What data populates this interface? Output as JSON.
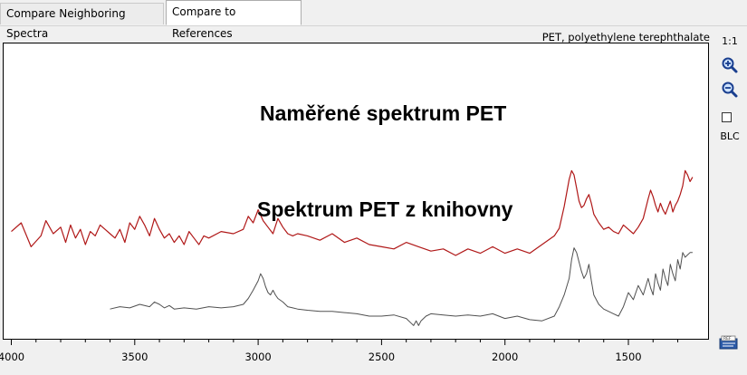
{
  "tabs": [
    {
      "label": "Compare Neighboring Spectra",
      "active": false
    },
    {
      "label": "Compare to References",
      "active": true
    }
  ],
  "plot": {
    "reference_name": "PET, polyethylene terephthalate",
    "caption_measured": "Naměřené spektrum PET",
    "caption_library": "Spektrum PET z knihovny",
    "colors": {
      "measured": "#b01818",
      "library": "#505050"
    }
  },
  "toolbar": {
    "scale_label": "1:1",
    "zoom_in_icon": "zoom-in-icon",
    "zoom_out_icon": "zoom-out-icon",
    "blc_checked": false,
    "blc_label": "BLC",
    "ref_icon": "ref-library-icon"
  },
  "chart_data": {
    "type": "line",
    "x_axis": {
      "reversed": true,
      "ticks": [
        4000,
        3500,
        3000,
        2500,
        2000,
        1500
      ],
      "range": [
        4020,
        1200
      ]
    },
    "series": [
      {
        "key": "measured",
        "x": [
          4000,
          3960,
          3920,
          3880,
          3860,
          3830,
          3800,
          3780,
          3760,
          3740,
          3720,
          3700,
          3680,
          3660,
          3640,
          3600,
          3580,
          3560,
          3540,
          3520,
          3500,
          3480,
          3460,
          3440,
          3420,
          3400,
          3380,
          3360,
          3340,
          3320,
          3300,
          3280,
          3260,
          3240,
          3220,
          3200,
          3150,
          3100,
          3060,
          3040,
          3020,
          3000,
          2980,
          2960,
          2940,
          2920,
          2900,
          2880,
          2860,
          2840,
          2800,
          2750,
          2700,
          2650,
          2600,
          2550,
          2500,
          2450,
          2400,
          2350,
          2300,
          2250,
          2200,
          2150,
          2100,
          2050,
          2000,
          1950,
          1900,
          1850,
          1800,
          1780,
          1760,
          1740,
          1730,
          1720,
          1710,
          1700,
          1690,
          1680,
          1670,
          1660,
          1650,
          1640,
          1620,
          1600,
          1580,
          1560,
          1540,
          1520,
          1500,
          1480,
          1460,
          1440,
          1420,
          1410,
          1400,
          1390,
          1380,
          1370,
          1360,
          1350,
          1340,
          1330,
          1320,
          1310,
          1300,
          1290,
          1280,
          1270,
          1260,
          1250,
          1240
        ],
        "y": [
          0.32,
          0.4,
          0.18,
          0.28,
          0.42,
          0.3,
          0.36,
          0.22,
          0.38,
          0.26,
          0.34,
          0.2,
          0.32,
          0.28,
          0.38,
          0.3,
          0.26,
          0.34,
          0.22,
          0.4,
          0.34,
          0.46,
          0.38,
          0.28,
          0.44,
          0.34,
          0.26,
          0.3,
          0.22,
          0.28,
          0.2,
          0.32,
          0.26,
          0.2,
          0.28,
          0.26,
          0.32,
          0.3,
          0.34,
          0.46,
          0.4,
          0.52,
          0.42,
          0.36,
          0.3,
          0.44,
          0.36,
          0.3,
          0.28,
          0.3,
          0.28,
          0.24,
          0.3,
          0.22,
          0.26,
          0.2,
          0.18,
          0.16,
          0.22,
          0.18,
          0.14,
          0.16,
          0.1,
          0.16,
          0.12,
          0.18,
          0.12,
          0.16,
          0.12,
          0.2,
          0.28,
          0.35,
          0.55,
          0.8,
          0.88,
          0.84,
          0.72,
          0.6,
          0.54,
          0.56,
          0.62,
          0.66,
          0.58,
          0.48,
          0.4,
          0.34,
          0.36,
          0.32,
          0.3,
          0.38,
          0.34,
          0.3,
          0.36,
          0.44,
          0.62,
          0.7,
          0.64,
          0.56,
          0.5,
          0.58,
          0.52,
          0.48,
          0.54,
          0.6,
          0.5,
          0.56,
          0.6,
          0.66,
          0.74,
          0.88,
          0.84,
          0.78,
          0.82
        ]
      },
      {
        "key": "library",
        "x": [
          3600,
          3560,
          3520,
          3480,
          3440,
          3420,
          3400,
          3380,
          3360,
          3340,
          3300,
          3250,
          3200,
          3150,
          3100,
          3060,
          3040,
          3020,
          3000,
          2990,
          2980,
          2970,
          2960,
          2950,
          2940,
          2930,
          2920,
          2900,
          2880,
          2860,
          2840,
          2800,
          2750,
          2700,
          2650,
          2600,
          2550,
          2500,
          2450,
          2400,
          2380,
          2370,
          2360,
          2350,
          2340,
          2320,
          2300,
          2250,
          2200,
          2150,
          2100,
          2050,
          2000,
          1950,
          1900,
          1850,
          1800,
          1780,
          1760,
          1740,
          1730,
          1720,
          1710,
          1700,
          1690,
          1680,
          1670,
          1660,
          1650,
          1640,
          1620,
          1600,
          1580,
          1560,
          1540,
          1520,
          1500,
          1480,
          1460,
          1440,
          1420,
          1410,
          1400,
          1390,
          1380,
          1370,
          1360,
          1350,
          1340,
          1330,
          1320,
          1310,
          1300,
          1290,
          1280,
          1270,
          1260,
          1250,
          1240
        ],
        "y": [
          0.36,
          0.38,
          0.37,
          0.4,
          0.38,
          0.42,
          0.4,
          0.37,
          0.39,
          0.36,
          0.37,
          0.36,
          0.38,
          0.37,
          0.38,
          0.4,
          0.45,
          0.52,
          0.6,
          0.66,
          0.62,
          0.55,
          0.5,
          0.48,
          0.52,
          0.48,
          0.45,
          0.42,
          0.38,
          0.37,
          0.36,
          0.35,
          0.34,
          0.34,
          0.33,
          0.32,
          0.3,
          0.3,
          0.31,
          0.28,
          0.24,
          0.22,
          0.26,
          0.22,
          0.26,
          0.3,
          0.32,
          0.31,
          0.3,
          0.31,
          0.3,
          0.32,
          0.28,
          0.3,
          0.27,
          0.26,
          0.3,
          0.38,
          0.48,
          0.62,
          0.78,
          0.88,
          0.84,
          0.76,
          0.68,
          0.62,
          0.66,
          0.74,
          0.6,
          0.48,
          0.4,
          0.36,
          0.34,
          0.32,
          0.3,
          0.38,
          0.5,
          0.44,
          0.56,
          0.48,
          0.62,
          0.54,
          0.48,
          0.66,
          0.58,
          0.52,
          0.7,
          0.62,
          0.56,
          0.74,
          0.66,
          0.6,
          0.78,
          0.7,
          0.84,
          0.8,
          0.82,
          0.84,
          0.84
        ]
      }
    ]
  }
}
